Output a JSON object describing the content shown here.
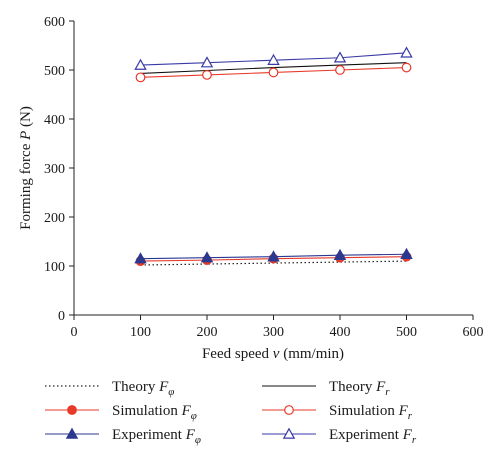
{
  "chart_data": {
    "type": "line",
    "xlabel_text": "Feed speed ",
    "xlabel_var": "v",
    "xlabel_unit": " (mm/min)",
    "ylabel_text": "Forming force ",
    "ylabel_var": "P",
    "ylabel_unit": " (N)",
    "xlim": [
      0,
      600
    ],
    "ylim": [
      0,
      600
    ],
    "x_ticks": [
      0,
      100,
      200,
      300,
      400,
      500,
      600
    ],
    "y_ticks": [
      0,
      100,
      200,
      300,
      400,
      500,
      600
    ],
    "grid": false,
    "legend_position": "bottom",
    "x": [
      100,
      200,
      300,
      400,
      500
    ],
    "series": [
      {
        "name": "Theory F_φ",
        "legend_main": "Theory ",
        "legend_var": "F",
        "legend_sub": "φ",
        "style": "dotted",
        "marker": "none",
        "color": "#222222",
        "values": [
          102,
          104,
          106,
          108,
          110
        ]
      },
      {
        "name": "Theory F_r",
        "legend_main": "Theory ",
        "legend_var": "F",
        "legend_sub": "r",
        "style": "solid",
        "marker": "none",
        "color": "#111111",
        "values": [
          493,
          499,
          505,
          510,
          515
        ]
      },
      {
        "name": "Simulation F_φ",
        "legend_main": "Simulation ",
        "legend_var": "F",
        "legend_sub": "φ",
        "style": "solid",
        "marker": "filled-circle",
        "color": "#e8392a",
        "values": [
          110,
          112,
          115,
          117,
          119
        ]
      },
      {
        "name": "Simulation F_r",
        "legend_main": "Simulation ",
        "legend_var": "F",
        "legend_sub": "r",
        "style": "solid",
        "marker": "open-circle",
        "color": "#e8392a",
        "values": [
          485,
          490,
          495,
          500,
          505
        ]
      },
      {
        "name": "Experiment F_φ",
        "legend_main": "Experiment ",
        "legend_var": "F",
        "legend_sub": "φ",
        "style": "solid",
        "marker": "filled-triangle",
        "color": "#2b3990",
        "values": [
          115,
          117,
          119,
          122,
          124
        ]
      },
      {
        "name": "Experiment F_r",
        "legend_main": "Experiment ",
        "legend_var": "F",
        "legend_sub": "r",
        "style": "solid",
        "marker": "open-triangle",
        "color": "#3a3aa8",
        "values": [
          510,
          515,
          520,
          525,
          535
        ]
      }
    ]
  }
}
